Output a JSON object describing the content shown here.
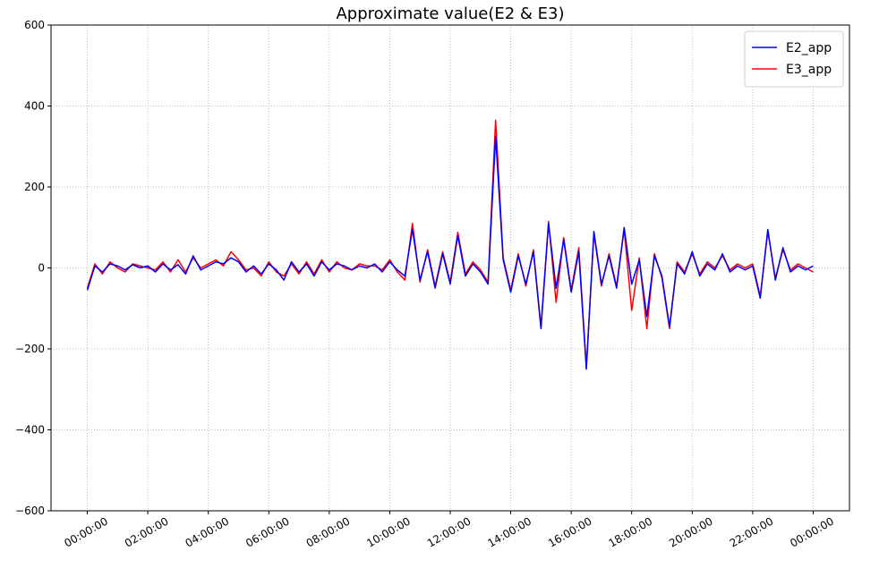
{
  "chart_data": {
    "type": "line",
    "title": "Approximate value(E2 & E3)",
    "x": [
      0,
      0.25,
      0.5,
      0.75,
      1,
      1.25,
      1.5,
      1.75,
      2,
      2.25,
      2.5,
      2.75,
      3,
      3.25,
      3.5,
      3.75,
      4,
      4.25,
      4.5,
      4.75,
      5,
      5.25,
      5.5,
      5.75,
      6,
      6.25,
      6.5,
      6.75,
      7,
      7.25,
      7.5,
      7.75,
      8,
      8.25,
      8.5,
      8.75,
      9,
      9.25,
      9.5,
      9.75,
      10,
      10.25,
      10.5,
      10.75,
      11,
      11.25,
      11.5,
      11.75,
      12,
      12.25,
      12.5,
      12.75,
      13,
      13.25,
      13.5,
      13.75,
      14,
      14.25,
      14.5,
      14.75,
      15,
      15.25,
      15.5,
      15.75,
      16,
      16.25,
      16.5,
      16.75,
      17,
      17.25,
      17.5,
      17.75,
      18,
      18.25,
      18.5,
      18.75,
      19,
      19.25,
      19.5,
      19.75,
      20,
      20.25,
      20.5,
      20.75,
      21,
      21.25,
      21.5,
      21.75,
      22,
      22.25,
      22.5,
      22.75,
      23,
      23.25,
      23.5,
      23.75,
      24
    ],
    "series": [
      {
        "name": "E2_app",
        "color": "#0000ff",
        "values": [
          -55,
          5,
          -10,
          10,
          5,
          -5,
          8,
          0,
          5,
          -10,
          10,
          -5,
          8,
          -15,
          30,
          -5,
          5,
          15,
          10,
          25,
          15,
          -10,
          5,
          -15,
          10,
          -5,
          -30,
          15,
          -10,
          10,
          -20,
          15,
          -5,
          10,
          5,
          -5,
          5,
          0,
          10,
          -10,
          15,
          -5,
          -20,
          95,
          -30,
          40,
          -50,
          35,
          -40,
          80,
          -20,
          10,
          -10,
          -40,
          325,
          20,
          -60,
          30,
          -40,
          40,
          -150,
          110,
          -50,
          70,
          -60,
          40,
          -250,
          90,
          -40,
          30,
          -50,
          100,
          -40,
          20,
          -120,
          30,
          -20,
          -145,
          10,
          -15,
          40,
          -20,
          10,
          -5,
          35,
          -10,
          5,
          -5,
          5,
          -75,
          95,
          -30,
          50,
          -10,
          5,
          -5,
          5
        ]
      },
      {
        "name": "E3_app",
        "color": "#ff0000",
        "values": [
          -50,
          10,
          -15,
          15,
          0,
          -10,
          10,
          5,
          0,
          -5,
          15,
          -10,
          20,
          -10,
          25,
          0,
          10,
          20,
          5,
          40,
          20,
          -5,
          0,
          -20,
          15,
          -10,
          -20,
          10,
          -15,
          15,
          -15,
          20,
          -10,
          15,
          0,
          -5,
          10,
          5,
          5,
          -5,
          20,
          -10,
          -30,
          110,
          -35,
          45,
          -45,
          40,
          -35,
          88,
          -15,
          15,
          -5,
          -35,
          365,
          25,
          -55,
          35,
          -45,
          45,
          -145,
          115,
          -85,
          75,
          -55,
          50,
          -245,
          85,
          -45,
          35,
          -45,
          95,
          -105,
          25,
          -150,
          35,
          -25,
          -150,
          15,
          -10,
          35,
          -15,
          15,
          0,
          30,
          -5,
          10,
          0,
          10,
          -70,
          90,
          -25,
          45,
          -5,
          10,
          0,
          -10
        ]
      }
    ],
    "xlim": [
      -1.2,
      25.2
    ],
    "xticks": [
      {
        "value": 0,
        "label": "00:00:00"
      },
      {
        "value": 2,
        "label": "02:00:00"
      },
      {
        "value": 4,
        "label": "04:00:00"
      },
      {
        "value": 6,
        "label": "06:00:00"
      },
      {
        "value": 8,
        "label": "08:00:00"
      },
      {
        "value": 10,
        "label": "10:00:00"
      },
      {
        "value": 12,
        "label": "12:00:00"
      },
      {
        "value": 14,
        "label": "14:00:00"
      },
      {
        "value": 16,
        "label": "16:00:00"
      },
      {
        "value": 18,
        "label": "18:00:00"
      },
      {
        "value": 20,
        "label": "20:00:00"
      },
      {
        "value": 22,
        "label": "22:00:00"
      },
      {
        "value": 24,
        "label": "00:00:00"
      }
    ],
    "ylim": [
      -600,
      600
    ],
    "yticks": [
      {
        "value": -600,
        "label": "−600"
      },
      {
        "value": -400,
        "label": "−400"
      },
      {
        "value": -200,
        "label": "−200"
      },
      0,
      200,
      400,
      600
    ],
    "grid": true,
    "legend": "upper right"
  }
}
